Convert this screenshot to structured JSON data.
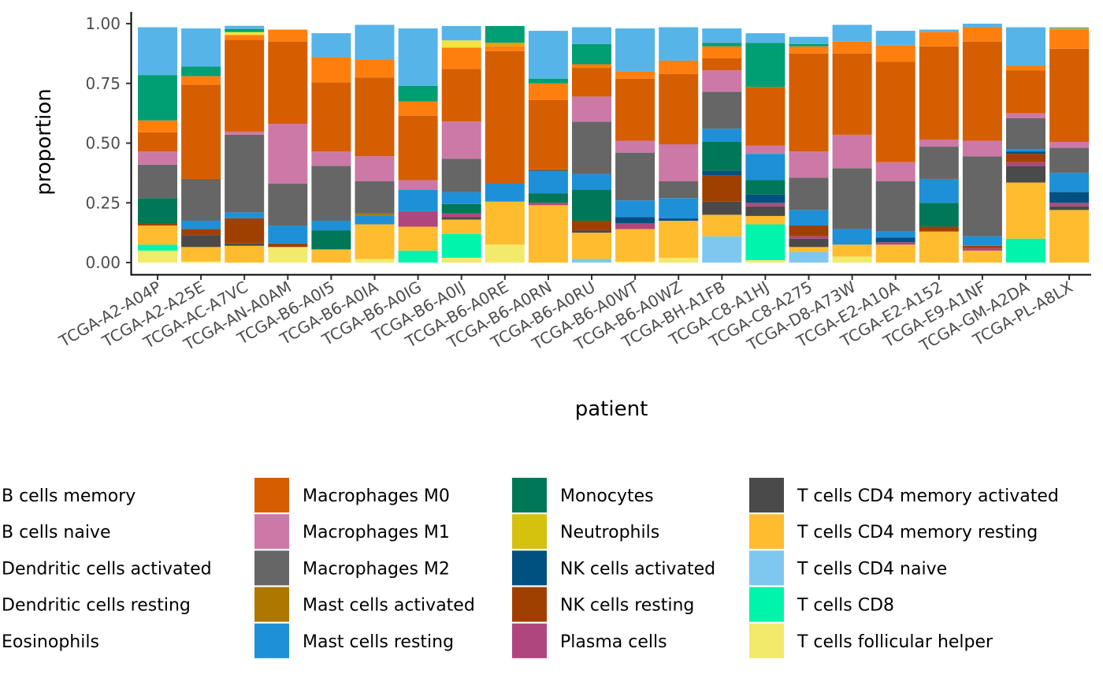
{
  "chart_data": {
    "type": "bar",
    "stacked": true,
    "xlabel": "patient",
    "ylabel": "proportion",
    "ylim": [
      0,
      1
    ],
    "y_ticks": [
      "0.00",
      "0.25",
      "0.50",
      "0.75",
      "1.00"
    ],
    "y_tick_values": [
      0,
      0.25,
      0.5,
      0.75,
      1.0
    ],
    "legend_position": "bottom",
    "categories": [
      "TCGA-A2-A04P",
      "TCGA-A2-A25E",
      "TCGA-AC-A7VC",
      "TCGA-AN-A0AM",
      "TCGA-B6-A0I5",
      "TCGA-B6-A0IA",
      "TCGA-B6-A0IG",
      "TCGA-B6-A0IJ",
      "TCGA-B6-A0RE",
      "TCGA-B6-A0RN",
      "TCGA-B6-A0RU",
      "TCGA-B6-A0WT",
      "TCGA-B6-A0WZ",
      "TCGA-BH-A1FB",
      "TCGA-C8-A1HJ",
      "TCGA-C8-A275",
      "TCGA-D8-A73W",
      "TCGA-E2-A10A",
      "TCGA-E2-A152",
      "TCGA-E9-A1NF",
      "TCGA-GM-A2DA",
      "TCGA-PL-A8LX"
    ],
    "series": [
      {
        "name": "B cells memory",
        "color": "#56B4E9",
        "values": [
          0.2,
          0.16,
          0.013,
          0,
          0.1,
          0.145,
          0.24,
          0.06,
          0,
          0.2,
          0.07,
          0.18,
          0.14,
          0.06,
          0.04,
          0.03,
          0.07,
          0.06,
          0.01,
          0.015,
          0.16,
          0.005
        ]
      },
      {
        "name": "B cells naive",
        "color": "#009E73",
        "values": [
          0.19,
          0.04,
          0.013,
          0,
          0,
          0,
          0.065,
          0,
          0.07,
          0.02,
          0.085,
          0,
          0,
          0.015,
          0.185,
          0.01,
          0,
          0,
          0,
          0,
          0,
          0
        ]
      },
      {
        "name": "Dendritic cells activated",
        "color": "#F0E442",
        "values": [
          0,
          0,
          0.012,
          0,
          0,
          0,
          0,
          0.03,
          0,
          0,
          0,
          0,
          0,
          0,
          0,
          0,
          0,
          0,
          0,
          0,
          0,
          0
        ]
      },
      {
        "name": "Dendritic cells resting",
        "color": "#E69F00",
        "values": [
          0,
          0,
          0,
          0,
          0,
          0,
          0,
          0,
          0.015,
          0,
          0,
          0,
          0,
          0,
          0,
          0,
          0,
          0,
          0,
          0,
          0,
          0.005
        ]
      },
      {
        "name": "Eosinophils",
        "color": "#FF7F0E",
        "values": [
          0.05,
          0.035,
          0.02,
          0.05,
          0.105,
          0.075,
          0.06,
          0.09,
          0.02,
          0.07,
          0.015,
          0.03,
          0.055,
          0.05,
          0,
          0.03,
          0.05,
          0.07,
          0.06,
          0.06,
          0.02,
          0.08
        ]
      },
      {
        "name": "Macrophages M0",
        "color": "#D55E00",
        "values": [
          0.08,
          0.395,
          0.385,
          0.345,
          0.29,
          0.33,
          0.27,
          0.22,
          0.555,
          0.29,
          0.12,
          0.26,
          0.295,
          0.05,
          0.245,
          0.41,
          0.34,
          0.42,
          0.39,
          0.415,
          0.18,
          0.39
        ]
      },
      {
        "name": "Macrophages M1",
        "color": "#CC79A7",
        "values": [
          0.055,
          0,
          0.013,
          0.25,
          0.06,
          0.105,
          0.04,
          0.155,
          0,
          0,
          0.105,
          0.05,
          0.155,
          0.09,
          0.035,
          0.11,
          0.14,
          0.08,
          0.03,
          0.065,
          0.02,
          0.025
        ]
      },
      {
        "name": "Macrophages M2",
        "color": "#666666",
        "values": [
          0.14,
          0.175,
          0.325,
          0.175,
          0.23,
          0.135,
          0,
          0.14,
          0,
          0.01,
          0.22,
          0.2,
          0.07,
          0.155,
          0,
          0.135,
          0.255,
          0.21,
          0.135,
          0.335,
          0.13,
          0.105
        ]
      },
      {
        "name": "Mast cells activated",
        "color": "#AD7700",
        "values": [
          0,
          0,
          0,
          0,
          0,
          0.01,
          0,
          0,
          0,
          0,
          0,
          0,
          0,
          0,
          0,
          0,
          0,
          0,
          0,
          0,
          0,
          0
        ]
      },
      {
        "name": "Mast cells resting",
        "color": "#1E90D8",
        "values": [
          0,
          0.035,
          0.025,
          0.075,
          0.04,
          0.035,
          0.09,
          0.05,
          0.075,
          0.09,
          0.065,
          0.07,
          0.085,
          0.055,
          0.11,
          0.065,
          0.065,
          0.025,
          0.1,
          0.04,
          0.01,
          0.08
        ]
      },
      {
        "name": "Monocytes",
        "color": "#007756",
        "values": [
          0.105,
          0,
          0,
          0,
          0.08,
          0,
          0,
          0.04,
          0,
          0.04,
          0.13,
          0,
          0,
          0.12,
          0.06,
          0,
          0,
          0,
          0.1,
          0,
          0,
          0
        ]
      },
      {
        "name": "Neutrophils",
        "color": "#D4C20E",
        "values": [
          0,
          0,
          0,
          0,
          0,
          0,
          0,
          0,
          0,
          0,
          0,
          0,
          0,
          0,
          0,
          0,
          0,
          0,
          0,
          0,
          0,
          0
        ]
      },
      {
        "name": "NK cells activated",
        "color": "#005080",
        "values": [
          0,
          0,
          0,
          0,
          0,
          0,
          0,
          0,
          0,
          0,
          0,
          0.025,
          0.01,
          0.02,
          0.035,
          0,
          0,
          0.02,
          0,
          0,
          0.01,
          0.045
        ]
      },
      {
        "name": "NK cells resting",
        "color": "#A04000",
        "values": [
          0.01,
          0.025,
          0.105,
          0.015,
          0,
          0,
          0,
          0,
          0,
          0,
          0.04,
          0,
          0,
          0.11,
          0,
          0.045,
          0,
          0,
          0.02,
          0.01,
          0.035,
          0
        ]
      },
      {
        "name": "Plasma cells",
        "color": "#B0467E",
        "values": [
          0,
          0,
          0,
          0,
          0,
          0,
          0.065,
          0.015,
          0,
          0.01,
          0,
          0.025,
          0,
          0,
          0.015,
          0.01,
          0,
          0.01,
          0,
          0.01,
          0.015,
          0.015
        ]
      },
      {
        "name": "T cells CD4 memory activated",
        "color": "#4A4A4A",
        "values": [
          0,
          0.05,
          0.01,
          0,
          0,
          0,
          0,
          0.01,
          0,
          0,
          0.01,
          0,
          0,
          0.055,
          0.04,
          0.035,
          0,
          0,
          0,
          0,
          0.07,
          0.015
        ]
      },
      {
        "name": "T cells CD4 memory resting",
        "color": "#FFBC2E",
        "values": [
          0.08,
          0.06,
          0.07,
          0,
          0.055,
          0.145,
          0.1,
          0.06,
          0.18,
          0.24,
          0.11,
          0.135,
          0.155,
          0.09,
          0.035,
          0.02,
          0.05,
          0.075,
          0.13,
          0.05,
          0.235,
          0.22
        ]
      },
      {
        "name": "T cells CD4 naive",
        "color": "#7EC8F0",
        "values": [
          0,
          0,
          0,
          0,
          0,
          0,
          0,
          0,
          0,
          0,
          0.015,
          0,
          0,
          0.11,
          0,
          0.045,
          0,
          0,
          0,
          0,
          0,
          0
        ]
      },
      {
        "name": "T cells CD8",
        "color": "#00F4AC",
        "values": [
          0.025,
          0,
          0,
          0,
          0,
          0,
          0.05,
          0.1,
          0,
          0,
          0,
          0,
          0,
          0,
          0.15,
          0,
          0,
          0,
          0,
          0,
          0.1,
          0
        ]
      },
      {
        "name": "T cells follicular helper",
        "color": "#F2EA6A",
        "values": [
          0.05,
          0.005,
          0,
          0.065,
          0,
          0.015,
          0,
          0.02,
          0.075,
          0,
          0,
          0.005,
          0.02,
          0,
          0.01,
          0,
          0.025,
          0,
          0,
          0,
          0,
          0
        ]
      }
    ]
  }
}
